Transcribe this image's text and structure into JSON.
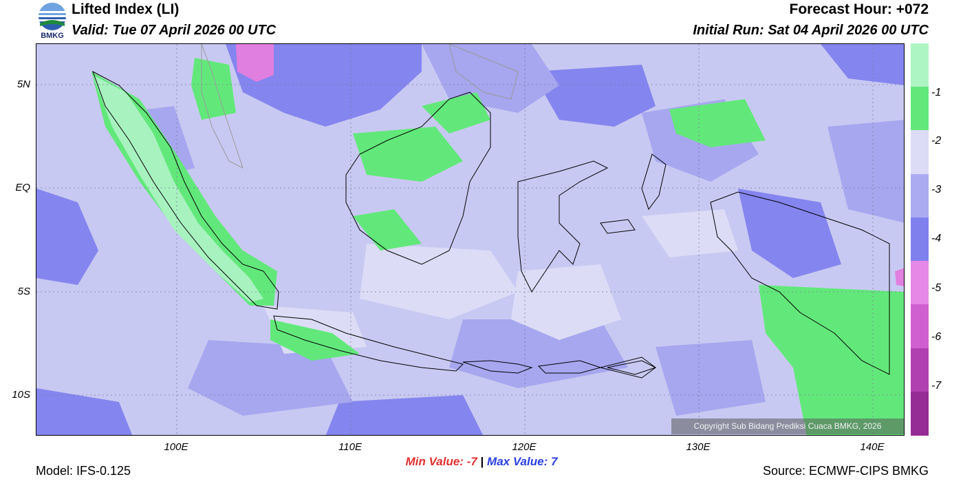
{
  "header": {
    "logo_label": "BMKG",
    "title": "Lifted Index (LI)",
    "valid": "Valid: Tue 07 April 2026 00 UTC",
    "forecast_hour": "Forecast Hour: +072",
    "initial_run": "Initial Run: Sat 04 April 2026 00 UTC"
  },
  "map": {
    "y_ticks": [
      "5N",
      "EQ",
      "5S",
      "10S"
    ],
    "x_ticks": [
      "100E",
      "110E",
      "120E",
      "130E",
      "140E"
    ],
    "copyright": "Copyright Sub Bidang Prediksi Cuaca BMKG, 2026",
    "field_colors": {
      "background": "#c8c9f2",
      "li_minus3": "#a6a7ef",
      "li_minus4": "#7f80ee",
      "li_minus2": "#dcdcf6",
      "li_minus1": "#62e87a",
      "li_0": "#a8f2c0",
      "li_minus5": "#e07fe0"
    }
  },
  "colorbar": {
    "labels": [
      "-1",
      "-2",
      "-3",
      "-4",
      "-5",
      "-6",
      "-7"
    ],
    "colors": [
      "#aef5c4",
      "#62e87a",
      "#dcdcf6",
      "#aaabf1",
      "#7f80ee",
      "#e688e6",
      "#d060d0",
      "#b040b0",
      "#952c95"
    ]
  },
  "footer": {
    "min_label": "Min Value:",
    "min_value": "-7",
    "separator": "|",
    "max_label": "Max Value:",
    "max_value": "7",
    "model": "Model: IFS-0.125",
    "source": "Source: ECMWF-CIPS BMKG"
  }
}
